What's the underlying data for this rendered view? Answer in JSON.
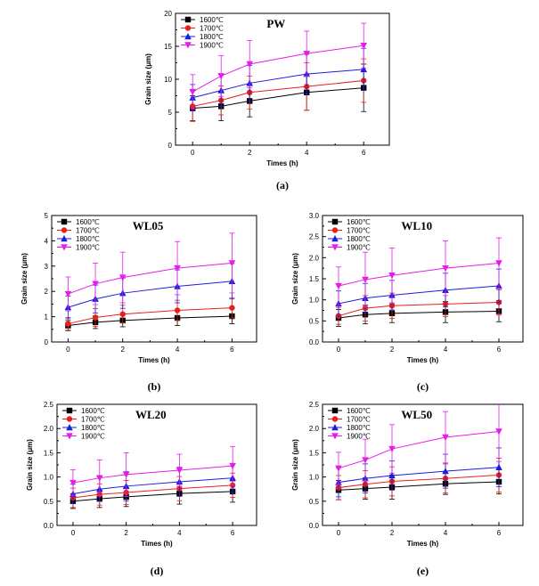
{
  "colors": {
    "1600": "#000000",
    "1700": "#e8201c",
    "1800": "#1c1ce0",
    "1900": "#e81ce8"
  },
  "marker_icons": [
    "square-marker-icon",
    "circle-marker-icon",
    "triangle-up-marker-icon",
    "triangle-down-marker-icon"
  ],
  "chart_data": [
    {
      "type": "line",
      "title": "PW",
      "caption": "(a)",
      "xlabel": "Times (h)",
      "ylabel": "Grain size (μm)",
      "x": [
        0,
        1,
        2,
        4,
        6
      ],
      "xticks": [
        "0",
        "2",
        "4",
        "6"
      ],
      "xlim": [
        -0.6,
        6.9
      ],
      "ylim": [
        0,
        20
      ],
      "yticks": [
        "0",
        "5",
        "10",
        "15",
        "20"
      ],
      "legend": "top-left",
      "grid": false,
      "series": [
        {
          "name": "1600℃",
          "values": [
            5.6,
            5.9,
            6.7,
            8.0,
            8.7
          ],
          "err_up": [
            1.9,
            2.2,
            2.4,
            2.7,
            3.6
          ],
          "err_down": [
            1.9,
            2.2,
            2.4,
            2.7,
            3.6
          ]
        },
        {
          "name": "1700℃",
          "values": [
            5.9,
            6.8,
            8.0,
            8.9,
            9.8
          ],
          "err_up": [
            2.3,
            2.2,
            2.5,
            3.6,
            3.3
          ],
          "err_down": [
            2.3,
            2.2,
            2.5,
            3.6,
            3.3
          ]
        },
        {
          "name": "1800℃",
          "values": [
            7.2,
            8.3,
            9.4,
            10.8,
            11.5
          ],
          "err_up": [
            2.0,
            2.4,
            2.7,
            3.0,
            3.2
          ],
          "err_down": [
            2.0,
            2.4,
            2.7,
            3.0,
            3.2
          ]
        },
        {
          "name": "1900℃",
          "values": [
            8.1,
            10.5,
            12.3,
            13.9,
            15.1
          ],
          "err_up": [
            2.6,
            3.1,
            3.6,
            3.4,
            3.4
          ],
          "err_down": [
            2.6,
            3.1,
            3.6,
            3.4,
            3.4
          ]
        }
      ]
    },
    {
      "type": "line",
      "title": "WL05",
      "caption": "(b)",
      "xlabel": "Times (h)",
      "ylabel": "Grain size (μm)",
      "x": [
        0,
        1,
        2,
        4,
        6
      ],
      "xticks": [
        "0",
        "2",
        "4",
        "6"
      ],
      "xlim": [
        -0.6,
        6.9
      ],
      "ylim": [
        0,
        5
      ],
      "yticks": [
        "0",
        "1",
        "2",
        "3",
        "4",
        "5"
      ],
      "legend": "top-left",
      "grid": false,
      "series": [
        {
          "name": "1600℃",
          "values": [
            0.65,
            0.78,
            0.85,
            0.95,
            1.02
          ],
          "err_up": [
            0.2,
            0.25,
            0.25,
            0.3,
            0.3
          ],
          "err_down": [
            0.2,
            0.25,
            0.25,
            0.3,
            0.3
          ]
        },
        {
          "name": "1700℃",
          "values": [
            0.72,
            0.97,
            1.1,
            1.25,
            1.35
          ],
          "err_up": [
            0.25,
            0.35,
            0.35,
            0.4,
            0.4
          ],
          "err_down": [
            0.25,
            0.35,
            0.35,
            0.4,
            0.4
          ]
        },
        {
          "name": "1800℃",
          "values": [
            1.37,
            1.7,
            1.93,
            2.2,
            2.4
          ],
          "err_up": [
            0.45,
            0.55,
            0.6,
            0.65,
            0.7
          ],
          "err_down": [
            0.45,
            0.55,
            0.6,
            0.65,
            0.7
          ]
        },
        {
          "name": "1900℃",
          "values": [
            1.9,
            2.3,
            2.55,
            2.92,
            3.12
          ],
          "err_up": [
            0.67,
            0.82,
            1.0,
            1.05,
            1.18
          ],
          "err_down": [
            0.67,
            0.82,
            1.0,
            1.05,
            1.18
          ]
        }
      ]
    },
    {
      "type": "line",
      "title": "WL10",
      "caption": "(c)",
      "xlabel": "Times (h)",
      "ylabel": "Grain size (μm)",
      "x": [
        0,
        1,
        2,
        4,
        6
      ],
      "xticks": [
        "0",
        "2",
        "4",
        "6"
      ],
      "xlim": [
        -0.6,
        6.9
      ],
      "ylim": [
        0,
        3.0
      ],
      "yticks": [
        "0.0",
        "0.5",
        "1.0",
        "1.5",
        "2.0",
        "2.5",
        "3.0"
      ],
      "legend": "top-left",
      "grid": false,
      "series": [
        {
          "name": "1600℃",
          "values": [
            0.57,
            0.65,
            0.68,
            0.71,
            0.73
          ],
          "err_up": [
            0.2,
            0.22,
            0.22,
            0.25,
            0.25
          ],
          "err_down": [
            0.2,
            0.22,
            0.22,
            0.25,
            0.25
          ]
        },
        {
          "name": "1700℃",
          "values": [
            0.62,
            0.8,
            0.86,
            0.9,
            0.94
          ],
          "err_up": [
            0.2,
            0.3,
            0.3,
            0.3,
            0.3
          ],
          "err_down": [
            0.2,
            0.3,
            0.3,
            0.3,
            0.3
          ]
        },
        {
          "name": "1800℃",
          "values": [
            0.91,
            1.04,
            1.11,
            1.23,
            1.33
          ],
          "err_up": [
            0.3,
            0.35,
            0.35,
            0.4,
            0.4
          ],
          "err_down": [
            0.3,
            0.35,
            0.35,
            0.4,
            0.4
          ]
        },
        {
          "name": "1900℃",
          "values": [
            1.33,
            1.48,
            1.58,
            1.75,
            1.87
          ],
          "err_up": [
            0.45,
            0.65,
            0.65,
            0.65,
            0.6
          ],
          "err_down": [
            0.45,
            0.65,
            0.65,
            0.65,
            0.6
          ]
        }
      ]
    },
    {
      "type": "line",
      "title": "WL20",
      "caption": "(d)",
      "xlabel": "Times (h)",
      "ylabel": "Grain size (μm)",
      "x": [
        0,
        1,
        2,
        4,
        6
      ],
      "xticks": [
        "0",
        "2",
        "4",
        "6"
      ],
      "xlim": [
        -0.6,
        6.9
      ],
      "ylim": [
        0,
        2.5
      ],
      "yticks": [
        "0.0",
        "0.5",
        "1.0",
        "1.5",
        "2.0",
        "2.5"
      ],
      "legend": "top-left",
      "grid": false,
      "series": [
        {
          "name": "1600℃",
          "values": [
            0.5,
            0.55,
            0.59,
            0.66,
            0.7
          ],
          "err_up": [
            0.15,
            0.18,
            0.2,
            0.22,
            0.22
          ],
          "err_down": [
            0.15,
            0.18,
            0.2,
            0.22,
            0.22
          ]
        },
        {
          "name": "1700℃",
          "values": [
            0.57,
            0.64,
            0.68,
            0.76,
            0.83
          ],
          "err_up": [
            0.2,
            0.22,
            0.25,
            0.25,
            0.25
          ],
          "err_down": [
            0.2,
            0.22,
            0.25,
            0.25,
            0.25
          ]
        },
        {
          "name": "1800℃",
          "values": [
            0.65,
            0.75,
            0.81,
            0.9,
            0.98
          ],
          "err_up": [
            0.2,
            0.25,
            0.3,
            0.3,
            0.3
          ],
          "err_down": [
            0.2,
            0.25,
            0.3,
            0.3,
            0.3
          ]
        },
        {
          "name": "1900℃",
          "values": [
            0.88,
            0.98,
            1.05,
            1.14,
            1.23
          ],
          "err_up": [
            0.27,
            0.37,
            0.45,
            0.33,
            0.4
          ],
          "err_down": [
            0.27,
            0.37,
            0.45,
            0.33,
            0.4
          ]
        }
      ]
    },
    {
      "type": "line",
      "title": "WL50",
      "caption": "(e)",
      "xlabel": "Times (h)",
      "ylabel": "Grain size (μm)",
      "x": [
        0,
        1,
        2,
        4,
        6
      ],
      "xticks": [
        "0",
        "2",
        "4",
        "6"
      ],
      "xlim": [
        -0.6,
        6.9
      ],
      "ylim": [
        0,
        2.5
      ],
      "yticks": [
        "0.0",
        "0.5",
        "1.0",
        "1.5",
        "2.0",
        "2.5"
      ],
      "legend": "top-left",
      "grid": false,
      "series": [
        {
          "name": "1600℃",
          "values": [
            0.73,
            0.76,
            0.79,
            0.86,
            0.9
          ],
          "err_up": [
            0.2,
            0.22,
            0.25,
            0.22,
            0.25
          ],
          "err_down": [
            0.2,
            0.22,
            0.25,
            0.22,
            0.25
          ]
        },
        {
          "name": "1700℃",
          "values": [
            0.78,
            0.85,
            0.91,
            0.97,
            1.04
          ],
          "err_up": [
            0.25,
            0.28,
            0.3,
            0.3,
            0.35
          ],
          "err_down": [
            0.25,
            0.28,
            0.3,
            0.3,
            0.35
          ]
        },
        {
          "name": "1800℃",
          "values": [
            0.89,
            0.97,
            1.03,
            1.12,
            1.2
          ],
          "err_up": [
            0.3,
            0.3,
            0.3,
            0.35,
            0.4
          ],
          "err_down": [
            0.3,
            0.3,
            0.3,
            0.35,
            0.4
          ]
        },
        {
          "name": "1900℃",
          "values": [
            1.18,
            1.35,
            1.58,
            1.82,
            1.94
          ],
          "err_up": [
            0.33,
            0.43,
            0.5,
            0.53,
            0.62
          ],
          "err_down": [
            0.33,
            0.43,
            0.5,
            0.53,
            0.62
          ]
        }
      ]
    }
  ]
}
